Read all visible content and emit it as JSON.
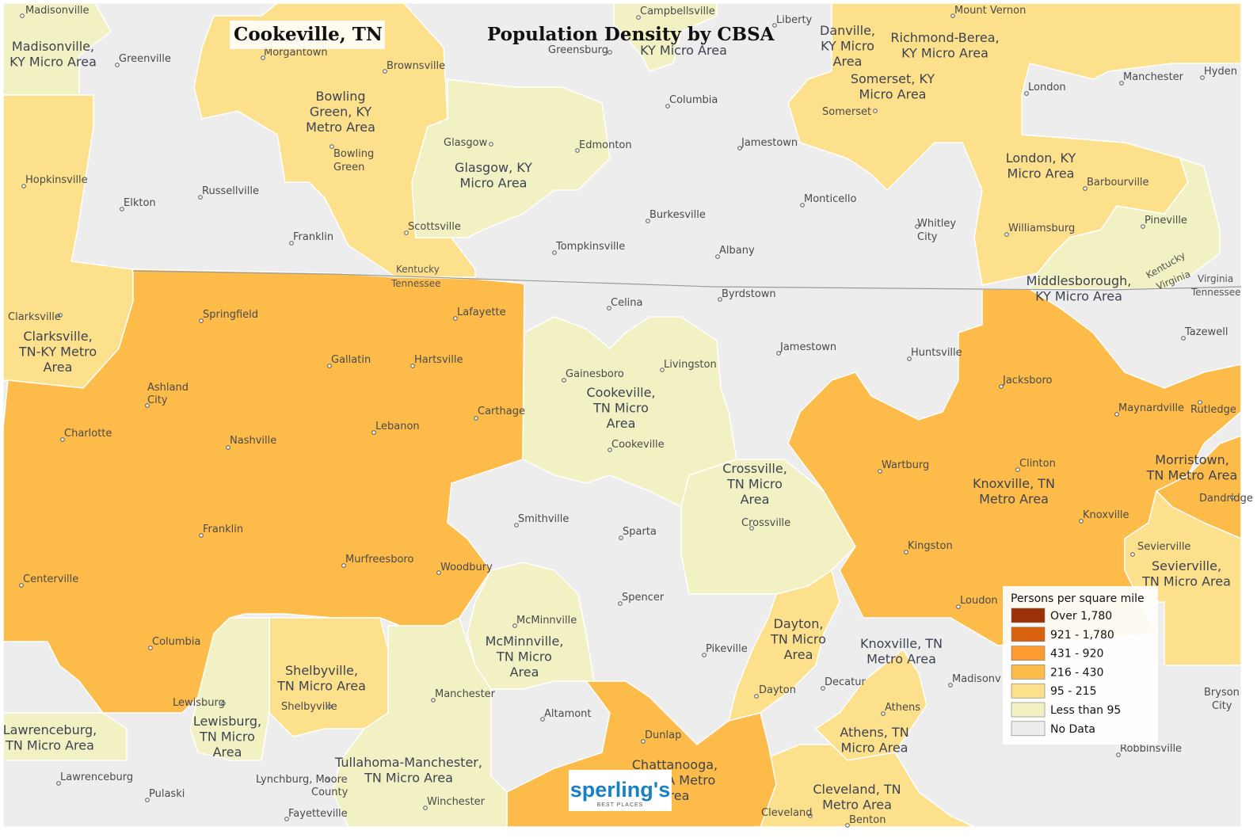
{
  "map": {
    "title": "Population Density by CBSA",
    "location_tag": "Cookeville, TN",
    "colors": {
      "none": "#ededed",
      "low": "#f2f1c4",
      "mid": "#fde08c",
      "high": "#fdbb4a",
      "water_border": "#ffffff"
    }
  },
  "cities": [
    {
      "name": "Madisonville"
    },
    {
      "name": "Greenville"
    },
    {
      "name": "Morgantown"
    },
    {
      "name": "Brownsville"
    },
    {
      "name": "Campbellsville"
    },
    {
      "name": "Greensburg"
    },
    {
      "name": "Liberty"
    },
    {
      "name": "Mount Vernon"
    },
    {
      "name": "Columbia"
    },
    {
      "name": "Manchester"
    },
    {
      "name": "Hyden"
    },
    {
      "name": "London"
    },
    {
      "name": "Somerset"
    },
    {
      "name": "Glasgow"
    },
    {
      "name": "Edmonton"
    },
    {
      "name": "Jamestown"
    },
    {
      "name": "Bowling"
    },
    {
      "name": "Green"
    },
    {
      "name": "Hopkinsville"
    },
    {
      "name": "Russellville"
    },
    {
      "name": "Elkton"
    },
    {
      "name": "Monticello"
    },
    {
      "name": "Barbourville"
    },
    {
      "name": "Burkesville"
    },
    {
      "name": "Whitley"
    },
    {
      "name": "City"
    },
    {
      "name": "Pineville"
    },
    {
      "name": "Williamsburg"
    },
    {
      "name": "Scottsville"
    },
    {
      "name": "Franklin"
    },
    {
      "name": "Tompkinsville"
    },
    {
      "name": "Albany"
    },
    {
      "name": "Clarksville"
    },
    {
      "name": "Springfield"
    },
    {
      "name": "Lafayette"
    },
    {
      "name": "Celina"
    },
    {
      "name": "Byrdstown"
    },
    {
      "name": "Tazewell"
    },
    {
      "name": "Gallatin"
    },
    {
      "name": "Hartsville"
    },
    {
      "name": "Livingston"
    },
    {
      "name": "Jamestown"
    },
    {
      "name": "Huntsville"
    },
    {
      "name": "Ashland"
    },
    {
      "name": "City"
    },
    {
      "name": "Gainesboro"
    },
    {
      "name": "Jacksboro"
    },
    {
      "name": "Carthage"
    },
    {
      "name": "Maynardville"
    },
    {
      "name": "Rutledge"
    },
    {
      "name": "Charlotte"
    },
    {
      "name": "Lebanon"
    },
    {
      "name": "Nashville"
    },
    {
      "name": "Cookeville"
    },
    {
      "name": "Wartburg"
    },
    {
      "name": "Clinton"
    },
    {
      "name": "Dandridge"
    },
    {
      "name": "Smithville"
    },
    {
      "name": "Crossville"
    },
    {
      "name": "Knoxville"
    },
    {
      "name": "Franklin"
    },
    {
      "name": "Sparta"
    },
    {
      "name": "Kingston"
    },
    {
      "name": "Sevierville"
    },
    {
      "name": "Murfreesboro"
    },
    {
      "name": "Woodbury"
    },
    {
      "name": "Centerville"
    },
    {
      "name": "Spencer"
    },
    {
      "name": "Loudon"
    },
    {
      "name": "McMinnville"
    },
    {
      "name": "Columbia"
    },
    {
      "name": "Pikeville"
    },
    {
      "name": "Madisonv"
    },
    {
      "name": "Decatur"
    },
    {
      "name": "Lewisburg"
    },
    {
      "name": "Manchester"
    },
    {
      "name": "Dayton"
    },
    {
      "name": "Bryson"
    },
    {
      "name": "City"
    },
    {
      "name": "Shelbyville"
    },
    {
      "name": "Athens"
    },
    {
      "name": "Altamont"
    },
    {
      "name": "Dunlap"
    },
    {
      "name": "Robbinsville"
    },
    {
      "name": "Lawrenceburg"
    },
    {
      "name": "Lynchburg, Moore"
    },
    {
      "name": "County"
    },
    {
      "name": "Pulaski"
    },
    {
      "name": "Winchester"
    },
    {
      "name": "Fayetteville"
    },
    {
      "name": "Cleveland"
    },
    {
      "name": "Benton"
    }
  ],
  "areas": [
    {
      "lines": [
        "Madisonville,",
        "KY Micro Area"
      ]
    },
    {
      "lines": [
        "Bowling",
        "Green, KY",
        "Metro Area"
      ]
    },
    {
      "lines": [
        "KY Micro Area"
      ]
    },
    {
      "lines": [
        "Danville,",
        "KY Micro",
        "Area"
      ]
    },
    {
      "lines": [
        "Richmond-Berea,",
        "KY Micro Area"
      ]
    },
    {
      "lines": [
        "Somerset, KY",
        "Micro Area"
      ]
    },
    {
      "lines": [
        "Glasgow, KY",
        "Micro Area"
      ]
    },
    {
      "lines": [
        "London, KY",
        "Micro Area"
      ]
    },
    {
      "lines": [
        "Middlesborough,",
        "KY Micro Area"
      ]
    },
    {
      "lines": [
        "Clarksville,",
        "TN-KY Metro",
        "Area"
      ]
    },
    {
      "lines": [
        "Cookeville,",
        "TN Micro",
        "Area"
      ]
    },
    {
      "lines": [
        "Crossville,",
        "TN Micro",
        "Area"
      ]
    },
    {
      "lines": [
        "Morristown,",
        "TN Metro Area"
      ]
    },
    {
      "lines": [
        "Knoxville, TN",
        "Metro Area"
      ]
    },
    {
      "lines": [
        "Sevierville,",
        "TN Micro Area"
      ]
    },
    {
      "lines": [
        "Dayton,",
        "TN Micro",
        "Area"
      ]
    },
    {
      "lines": [
        "Knoxville, TN",
        "Metro Area"
      ]
    },
    {
      "lines": [
        "McMinnville,",
        "TN Micro",
        "Area"
      ]
    },
    {
      "lines": [
        "Shelbyville,",
        "TN Micro Area"
      ]
    },
    {
      "lines": [
        "Lewisburg,",
        "TN Micro",
        "Area"
      ]
    },
    {
      "lines": [
        "Lawrenceburg,",
        "TN Micro Area"
      ]
    },
    {
      "lines": [
        "Tullahoma-Manchester,",
        "TN Micro Area"
      ]
    },
    {
      "lines": [
        "Chattanooga,",
        "TN-GA Metro",
        "Area"
      ]
    },
    {
      "lines": [
        "Athens, TN",
        "Micro Area"
      ]
    },
    {
      "lines": [
        "Cleveland, TN",
        "Metro Area"
      ]
    }
  ],
  "boundaries": [
    {
      "text": "Kentucky"
    },
    {
      "text": "Tennessee"
    },
    {
      "text": "Kentucky"
    },
    {
      "text": "Virginia"
    },
    {
      "text": "Virginia"
    },
    {
      "text": "Tennessee"
    }
  ],
  "legend": {
    "title": "Persons per square mile",
    "items": [
      {
        "label": "Over 1,780",
        "color": "#9c3006"
      },
      {
        "label": "921 - 1,780",
        "color": "#d9620f"
      },
      {
        "label": "431 - 920",
        "color": "#fd9a30"
      },
      {
        "label": "216 - 430",
        "color": "#fdbb4a"
      },
      {
        "label": "95 - 215",
        "color": "#fde08c"
      },
      {
        "label": "Less than 95",
        "color": "#f2f1c4"
      },
      {
        "label": "No Data",
        "color": "#ededed"
      }
    ]
  },
  "logo": {
    "brand": "sperling's",
    "tagline": "BEST PLACES"
  }
}
